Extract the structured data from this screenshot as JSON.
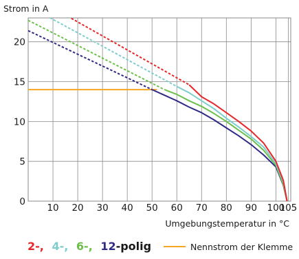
{
  "colors": {
    "pole2": "#e8262a",
    "pole4": "#7dcdcd",
    "pole6": "#6cc04a",
    "pole12": "#2e2a85",
    "nennstrom": "#f5a623",
    "grid": "#8a8a8a"
  },
  "chart_data": {
    "type": "line",
    "ylabel": "Strom in A",
    "xlabel": "Umgebungstemperatur in °C",
    "xlim": [
      0,
      106
    ],
    "ylim": [
      0,
      23
    ],
    "grid": true,
    "x_ticks": [
      10,
      20,
      30,
      40,
      50,
      60,
      70,
      80,
      90,
      100,
      105
    ],
    "y_ticks": [
      0,
      5,
      10,
      15,
      20
    ],
    "x_tick_labels": [
      "10",
      "20",
      "30",
      "40",
      "50",
      "60",
      "70",
      "80",
      "90",
      "100",
      "105"
    ],
    "y_tick_labels": [
      "0",
      "5",
      "10",
      "15",
      "20"
    ],
    "legend": {
      "placement": "bottom",
      "poles": [
        {
          "text": "2-,",
          "color_key": "pole2"
        },
        {
          "text": "4-,",
          "color_key": "pole4"
        },
        {
          "text": "6-,",
          "color_key": "pole6"
        },
        {
          "text": "12",
          "color_key": "pole12"
        }
      ],
      "poles_suffix": "-polig",
      "nennstrom_label": "Nennstrom der Klemme"
    },
    "series": [
      {
        "color_key": "pole2",
        "dashed": [
          [
            0,
            26
          ],
          [
            65,
            14.6
          ]
        ],
        "solid": [
          [
            65,
            14.6
          ],
          [
            70,
            13.1
          ],
          [
            75,
            12.2
          ],
          [
            80,
            11.1
          ],
          [
            85,
            10.0
          ],
          [
            90,
            8.8
          ],
          [
            95,
            7.3
          ],
          [
            100,
            5.0
          ],
          [
            103,
            2.6
          ],
          [
            104.5,
            0
          ]
        ]
      },
      {
        "color_key": "pole4",
        "dashed": [
          [
            0,
            24.5
          ],
          [
            60,
            14.4
          ]
        ],
        "solid": [
          [
            60,
            14.4
          ],
          [
            65,
            13.6
          ],
          [
            70,
            12.6
          ],
          [
            75,
            11.6
          ],
          [
            80,
            10.4
          ],
          [
            85,
            9.3
          ],
          [
            90,
            8.1
          ],
          [
            95,
            6.8
          ],
          [
            100,
            4.7
          ],
          [
            103,
            2.4
          ],
          [
            104.5,
            0
          ]
        ]
      },
      {
        "color_key": "pole6",
        "dashed": [
          [
            0,
            22.7
          ],
          [
            55,
            14.0
          ]
        ],
        "solid": [
          [
            55,
            14.0
          ],
          [
            60,
            13.4
          ],
          [
            65,
            12.6
          ],
          [
            70,
            11.9
          ],
          [
            75,
            11.0
          ],
          [
            80,
            10.0
          ],
          [
            85,
            8.9
          ],
          [
            90,
            7.8
          ],
          [
            95,
            6.4
          ],
          [
            100,
            4.5
          ],
          [
            103,
            2.1
          ],
          [
            104.5,
            0
          ]
        ]
      },
      {
        "color_key": "pole12",
        "dashed": [
          [
            0,
            21.4
          ],
          [
            50,
            14.0
          ]
        ],
        "solid": [
          [
            50,
            14.0
          ],
          [
            55,
            13.3
          ],
          [
            60,
            12.6
          ],
          [
            65,
            11.8
          ],
          [
            70,
            11.1
          ],
          [
            75,
            10.2
          ],
          [
            80,
            9.2
          ],
          [
            85,
            8.2
          ],
          [
            90,
            7.1
          ],
          [
            95,
            5.8
          ],
          [
            100,
            4.3
          ],
          [
            103,
            2.0
          ],
          [
            104.5,
            0
          ]
        ]
      },
      {
        "color_key": "nennstrom",
        "dashed": [],
        "solid": [
          [
            0,
            14.0
          ],
          [
            52,
            14.0
          ]
        ]
      }
    ]
  }
}
